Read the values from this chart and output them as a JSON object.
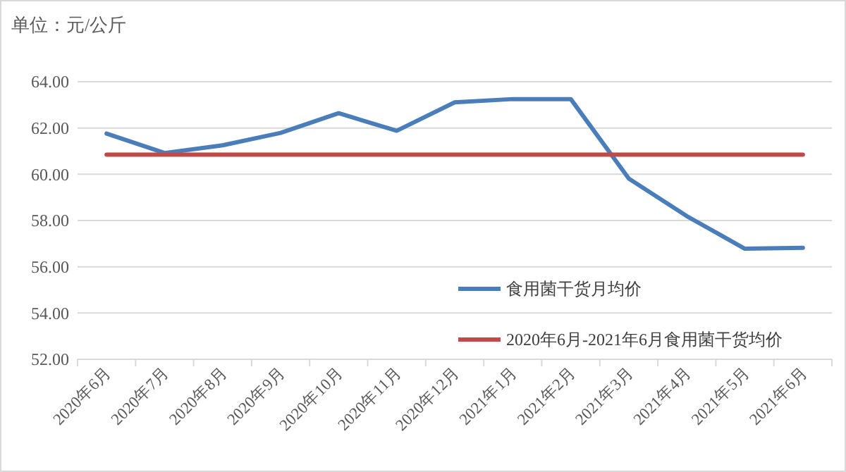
{
  "chart_data": {
    "type": "line",
    "title": "单位：元/公斤",
    "categories": [
      "2020年6月",
      "2020年7月",
      "2020年8月",
      "2020年9月",
      "2020年10月",
      "2020年11月",
      "2020年12月",
      "2021年1月",
      "2021年2月",
      "2021年3月",
      "2021年4月",
      "2021年5月",
      "2021年6月"
    ],
    "series": [
      {
        "name": "食用菌干货月均价",
        "color": "#4a7ebb",
        "values": [
          61.76,
          60.92,
          61.25,
          61.79,
          62.64,
          61.88,
          63.11,
          63.25,
          63.25,
          59.81,
          58.19,
          56.78,
          56.82
        ]
      },
      {
        "name": "2020年6月-2021年6月食用菌干货均价",
        "color": "#be4b48",
        "values": [
          60.85,
          60.85,
          60.85,
          60.85,
          60.85,
          60.85,
          60.85,
          60.85,
          60.85,
          60.85,
          60.85,
          60.85,
          60.85
        ]
      }
    ],
    "ylim": [
      52,
      64
    ],
    "yticks": [
      {
        "value": 52,
        "label": "52.00"
      },
      {
        "value": 54,
        "label": "54.00"
      },
      {
        "value": 56,
        "label": "56.00"
      },
      {
        "value": 58,
        "label": "58.00"
      },
      {
        "value": 60,
        "label": "60.00"
      },
      {
        "value": 62,
        "label": "62.00"
      },
      {
        "value": 64,
        "label": "64.00"
      }
    ],
    "grid": "y",
    "legend": "right",
    "marker": "none",
    "line_style": "solid"
  }
}
